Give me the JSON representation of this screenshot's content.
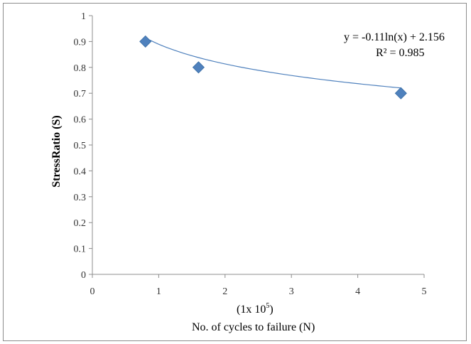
{
  "chart_data": {
    "type": "scatter",
    "title": "",
    "xlabel": "No. of cycles to failure  (N)",
    "xunit_prefix": "(1x 10",
    "xunit_exp": "5",
    "xunit_suffix": ")",
    "ylabel": "StressRatio (S)",
    "xlim": [
      0,
      5
    ],
    "ylim": [
      0,
      1
    ],
    "xticks": [
      "0",
      "1",
      "2",
      "3",
      "4",
      "5"
    ],
    "yticks": [
      "0",
      "0.1",
      "0.2",
      "0.3",
      "0.4",
      "0.5",
      "0.6",
      "0.7",
      "0.8",
      "0.9",
      "1"
    ],
    "grid": false,
    "series": [
      {
        "marker": "diamond",
        "color": "#4f81bd",
        "points": [
          {
            "x": 0.8,
            "y": 0.9
          },
          {
            "x": 1.6,
            "y": 0.8
          },
          {
            "x": 4.65,
            "y": 0.7
          }
        ]
      }
    ],
    "trendline": {
      "type": "logarithmic",
      "color": "#4f81bd",
      "a": -0.11,
      "b": 2.156,
      "equation": "y = -0.11ln(x)  + 2.156",
      "r2_label": "R² = 0.985"
    }
  }
}
